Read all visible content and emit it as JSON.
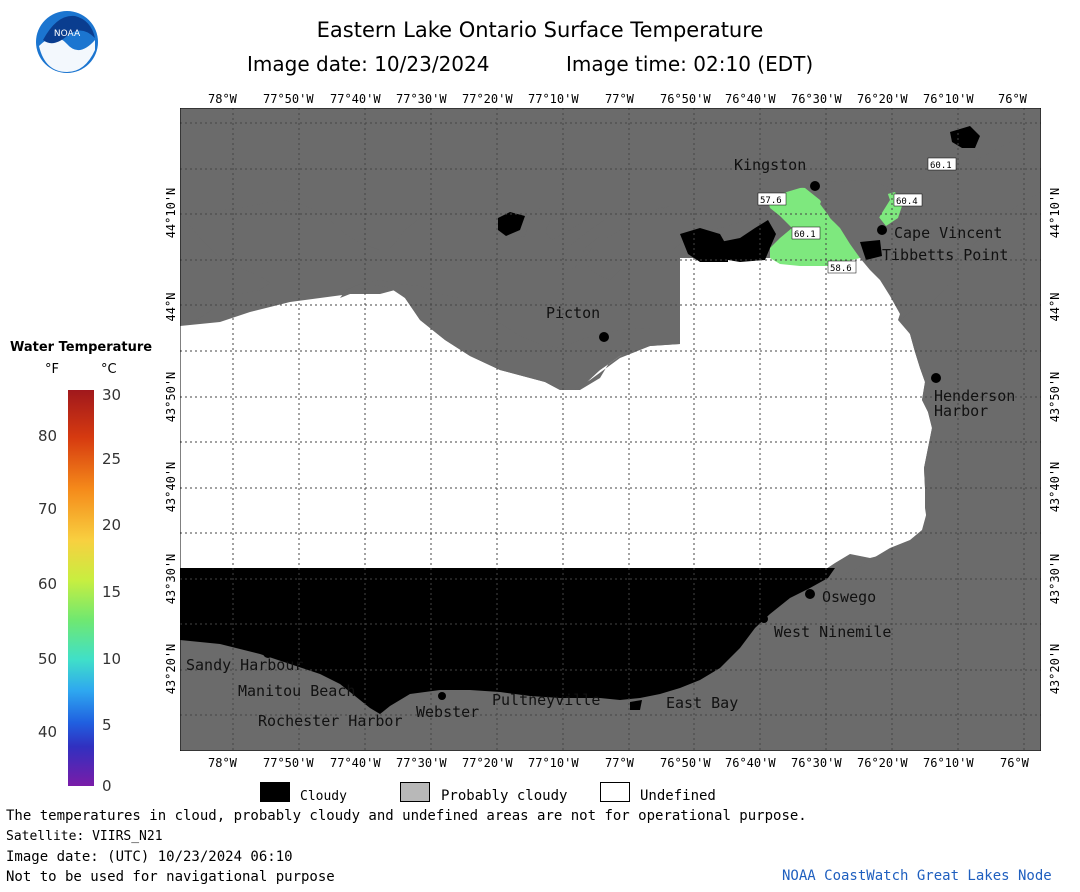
{
  "header": {
    "title": "Eastern Lake Ontario Surface Temperature",
    "image_date_label": "Image date: 10/23/2024",
    "image_time_label": "Image time: 02:10 (EDT)"
  },
  "logo": {
    "text": "NOAA"
  },
  "axes": {
    "lon_labels": [
      "78°W",
      "77°50'W",
      "77°40'W",
      "77°30'W",
      "77°20'W",
      "77°10'W",
      "77°W",
      "76°50'W",
      "76°40'W",
      "76°30'W",
      "76°20'W",
      "76°10'W",
      "76°W"
    ],
    "lat_labels": [
      "44°10'N",
      "44°N",
      "43°50'N",
      "43°40'N",
      "43°30'N",
      "43°20'N"
    ]
  },
  "scale": {
    "title": "Water Temperature",
    "unit_f": "°F",
    "unit_c": "°C",
    "f_ticks": [
      "80",
      "70",
      "60",
      "50",
      "40"
    ],
    "c_ticks": [
      "30",
      "25",
      "20",
      "15",
      "10",
      "5",
      "0"
    ]
  },
  "places": {
    "kingston": "Kingston",
    "picton": "Picton",
    "cape_vincent": "Cape Vincent",
    "tibbetts_point": "Tibbetts Point",
    "henderson_harbor_1": "Henderson",
    "henderson_harbor_2": "Harbor",
    "oswego": "Oswego",
    "west_ninemile": "West Ninemile",
    "sandy_harbour": "Sandy Harbour",
    "manitou_beach": "Manitou Beach",
    "rochester_harbor": "Rochester Harbor",
    "webster": "Webster",
    "pultneyville": "Pultneyville",
    "east_bay": "East Bay"
  },
  "temp_labels": [
    "57.6",
    "60.1",
    "60.1",
    "60.4",
    "58.6"
  ],
  "legend": {
    "cloudy": "Cloudy",
    "probably_cloudy": "Probably cloudy",
    "undefined": "Undefined"
  },
  "footer": {
    "disclaimer": "The temperatures in cloud, probably cloudy and undefined areas are not for operational purpose.",
    "satellite": "Satellite: VIIRS_N21",
    "image_date_utc": "Image date: (UTC) 10/23/2024  06:10",
    "nav_warning": "Not to be used for navigational purpose",
    "credit": "NOAA CoastWatch Great Lakes Node"
  },
  "colors": {
    "land": "#6b6b6b",
    "cloud": "#000000",
    "undefined_water": "#ffffff",
    "water_temp_60F": "#7ee87e",
    "credit_text": "#1f5fbf"
  }
}
